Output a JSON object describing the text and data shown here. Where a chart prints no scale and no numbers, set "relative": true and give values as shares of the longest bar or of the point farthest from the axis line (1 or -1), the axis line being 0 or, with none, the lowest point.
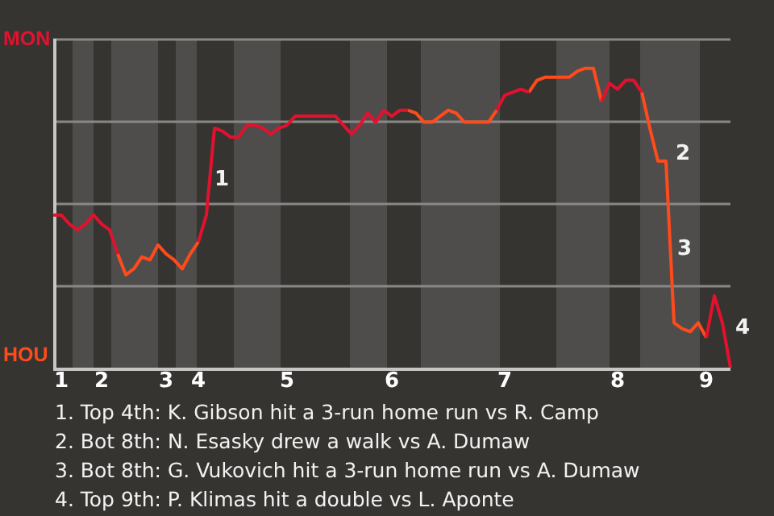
{
  "chart_data": {
    "type": "line",
    "relative": true,
    "categories": [
      null,
      "1",
      null,
      null,
      null,
      null,
      "2",
      null,
      null,
      null,
      null,
      null,
      null,
      null,
      "3",
      null,
      null,
      null,
      "4",
      null,
      null,
      null,
      null,
      null,
      null,
      null,
      null,
      null,
      null,
      "5",
      null,
      null,
      null,
      null,
      null,
      null,
      null,
      null,
      null,
      null,
      null,
      null,
      "6",
      null,
      null,
      null,
      null,
      null,
      null,
      null,
      null,
      null,
      null,
      null,
      null,
      null,
      "7",
      null,
      null,
      null,
      null,
      null,
      null,
      null,
      null,
      null,
      null,
      null,
      null,
      null,
      "8",
      null,
      null,
      null,
      null,
      null,
      null,
      null,
      null,
      null,
      null,
      "9",
      null,
      null,
      null
    ],
    "series": [
      {
        "color": "#e2122e",
        "values": [
          0.51,
          0.51,
          0.48,
          0.46,
          0.48,
          0.51,
          0.48,
          0.46,
          0.38,
          null,
          null,
          null,
          null,
          null,
          null,
          null,
          null,
          null,
          0.42,
          0.51,
          0.8,
          0.79,
          0.77,
          0.77,
          0.81,
          0.81,
          0.8,
          0.78,
          0.8,
          0.81,
          0.84,
          0.84,
          0.84,
          0.84,
          0.84,
          0.84,
          0.81,
          0.78,
          0.81,
          0.85,
          0.82,
          0.86,
          0.84,
          0.86,
          0.86,
          null,
          null,
          null,
          null,
          null,
          null,
          null,
          null,
          null,
          null,
          0.86,
          0.91,
          0.92,
          0.93,
          0.92,
          null,
          null,
          null,
          null,
          null,
          null,
          null,
          null,
          0.89,
          0.95,
          0.93,
          0.96,
          0.96,
          0.92,
          null,
          null,
          null,
          null,
          null,
          null,
          null,
          0.1,
          0.24,
          0.15,
          0
        ]
      },
      {
        "color": "#ff4b1c",
        "values": [
          null,
          null,
          null,
          null,
          null,
          null,
          null,
          null,
          0.38,
          0.31,
          0.33,
          0.37,
          0.36,
          0.41,
          0.38,
          0.36,
          0.33,
          0.38,
          0.42,
          null,
          null,
          null,
          null,
          null,
          null,
          null,
          null,
          null,
          null,
          null,
          null,
          null,
          null,
          null,
          null,
          null,
          null,
          null,
          null,
          null,
          null,
          null,
          null,
          null,
          0.86,
          0.85,
          0.82,
          0.82,
          0.84,
          0.86,
          0.85,
          0.82,
          0.82,
          0.82,
          0.82,
          0.86,
          null,
          null,
          null,
          0.92,
          0.96,
          0.97,
          0.97,
          0.97,
          0.97,
          0.99,
          1,
          1,
          0.89,
          null,
          null,
          null,
          null,
          0.92,
          0.8,
          0.69,
          0.69,
          0.15,
          0.13,
          0.12,
          0.15,
          0.1,
          null,
          null,
          null
        ]
      }
    ],
    "grid": "y",
    "marker": "none",
    "annotations": [
      "MON",
      "HOU",
      "1",
      "2",
      "3",
      "4",
      "1. Top 4th: K. Gibson hit a 3-run home run vs R. Camp",
      "2. Bot 8th: N. Esasky drew a walk vs A. Dumaw",
      "3. Bot 8th: G. Vukovich hit a 3-run home run vs A. Dumaw",
      "4. Top 9th: P. Klimas hit a double vs L. Aponte"
    ]
  }
}
